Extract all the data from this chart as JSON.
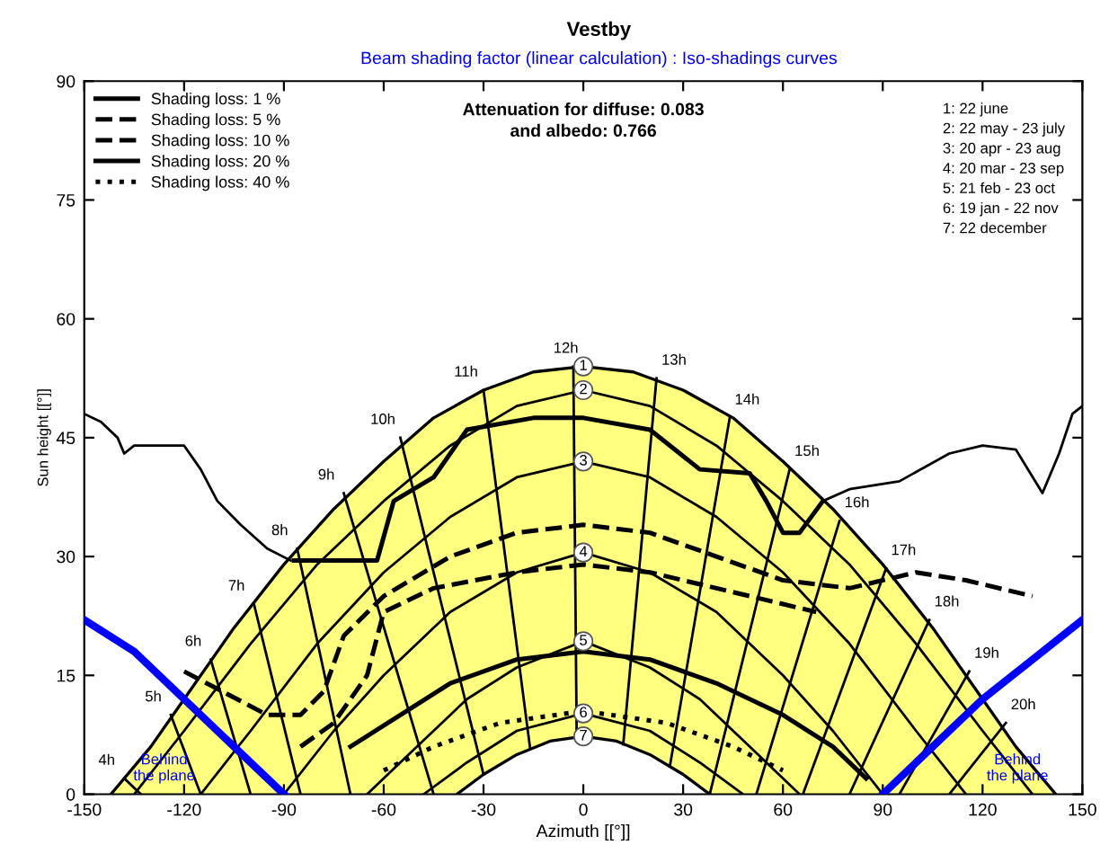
{
  "chart_data": {
    "type": "line",
    "title": "Vestby",
    "subtitle": "Beam shading factor (linear calculation) : Iso-shadings curves",
    "xlabel": "Azimuth [[°]]",
    "ylabel": "Sun height [[°]]",
    "xlim": [
      -150,
      150
    ],
    "xticks": [
      -150,
      -120,
      -90,
      -60,
      -30,
      0,
      30,
      60,
      90,
      120,
      150
    ],
    "ylim": [
      0,
      90
    ],
    "yticks": [
      0,
      15,
      30,
      45,
      60,
      75,
      90
    ],
    "grid": false,
    "legend": "top left",
    "series": [
      {
        "type": "area",
        "color": "#ffff80",
        "x": [
          -142,
          -130,
          -120,
          -105,
          -90,
          -75,
          -60,
          -45,
          -30,
          -15,
          0,
          15,
          30,
          45,
          60,
          75,
          90,
          105,
          120,
          130,
          142
        ],
        "values": [
          0,
          6,
          12,
          21,
          29,
          36,
          42,
          47.5,
          51,
          53.3,
          54,
          53.3,
          51,
          47.5,
          42,
          36,
          29,
          21,
          12,
          6,
          0
        ]
      },
      {
        "color": "#000000",
        "x": [
          -135,
          -120,
          -100,
          -80,
          -60,
          -40,
          -20,
          0,
          20,
          40,
          60,
          80,
          100,
          120,
          135
        ],
        "values": [
          0,
          8,
          19,
          29,
          37,
          44,
          49,
          51,
          49,
          44,
          37,
          29,
          19,
          8,
          0
        ]
      },
      {
        "color": "#000000",
        "x": [
          -115,
          -100,
          -80,
          -60,
          -40,
          -20,
          0,
          20,
          40,
          60,
          80,
          100,
          115
        ],
        "values": [
          0,
          8,
          19,
          28,
          35,
          40,
          42,
          40,
          35,
          28,
          19,
          8,
          0
        ]
      },
      {
        "color": "#000000",
        "x": [
          -90,
          -75,
          -60,
          -40,
          -20,
          0,
          20,
          40,
          60,
          75,
          90
        ],
        "values": [
          0,
          8,
          15,
          23,
          28,
          30.5,
          28,
          23,
          15,
          8,
          0
        ]
      },
      {
        "color": "#000000",
        "x": [
          -65,
          -50,
          -35,
          -20,
          0,
          20,
          35,
          50,
          65
        ],
        "values": [
          0,
          6,
          12,
          16,
          19.3,
          16,
          12,
          6,
          0
        ]
      },
      {
        "color": "#000000",
        "x": [
          -48,
          -35,
          -20,
          0,
          20,
          35,
          48
        ],
        "values": [
          0,
          4,
          8,
          10.2,
          8,
          4,
          0
        ]
      },
      {
        "type": "area",
        "color": "#ffffff",
        "x": [
          -38,
          -30,
          -20,
          -10,
          0,
          10,
          20,
          30,
          38
        ],
        "values": [
          0,
          2.5,
          5,
          6.7,
          7.3,
          6.7,
          5,
          2.5,
          0
        ]
      },
      {
        "color": "#000000",
        "x": [
          -138,
          -133
        ],
        "values": [
          2,
          0
        ]
      },
      {
        "color": "#000000",
        "x": [
          -124,
          -115
        ],
        "values": [
          10,
          0
        ]
      },
      {
        "color": "#000000",
        "x": [
          -112,
          -100
        ],
        "values": [
          17,
          0
        ]
      },
      {
        "color": "#000000",
        "x": [
          -99,
          -85
        ],
        "values": [
          24,
          0
        ]
      },
      {
        "color": "#000000",
        "x": [
          -86,
          -70
        ],
        "values": [
          31,
          0
        ]
      },
      {
        "color": "#000000",
        "x": [
          -72,
          -45
        ],
        "values": [
          38,
          0
        ]
      },
      {
        "color": "#000000",
        "x": [
          -55,
          -30
        ],
        "values": [
          45,
          2.5
        ]
      },
      {
        "color": "#000000",
        "x": [
          -30,
          -16
        ],
        "values": [
          51,
          5.8
        ]
      },
      {
        "color": "#000000",
        "x": [
          -3,
          -2
        ],
        "values": [
          54,
          7.3
        ]
      },
      {
        "color": "#000000",
        "x": [
          22,
          12
        ],
        "values": [
          52.5,
          6.3
        ]
      },
      {
        "color": "#000000",
        "x": [
          44,
          26
        ],
        "values": [
          47.5,
          3.5
        ]
      },
      {
        "color": "#000000",
        "x": [
          62,
          38
        ],
        "values": [
          41,
          0
        ]
      },
      {
        "color": "#000000",
        "x": [
          77,
          52
        ],
        "values": [
          34.5,
          0
        ]
      },
      {
        "color": "#000000",
        "x": [
          91,
          66
        ],
        "values": [
          28.5,
          0
        ]
      },
      {
        "color": "#000000",
        "x": [
          104,
          80
        ],
        "values": [
          22,
          0
        ]
      },
      {
        "color": "#000000",
        "x": [
          116,
          95
        ],
        "values": [
          15.5,
          0
        ]
      },
      {
        "color": "#000000",
        "x": [
          127,
          110
        ],
        "values": [
          9,
          0
        ]
      },
      {
        "color": "#000000",
        "x": [
          -150,
          -145,
          -140,
          -138,
          -135,
          -120,
          -115,
          -110,
          -103,
          -95,
          -88
        ],
        "values": [
          48,
          47,
          45,
          43,
          44,
          44,
          41,
          37,
          34,
          31,
          29.5
        ]
      },
      {
        "color": "#000000",
        "x": [
          72,
          80,
          95,
          110,
          120,
          130,
          138,
          143,
          147,
          150
        ],
        "values": [
          37,
          38.5,
          39.5,
          43,
          44,
          43.5,
          38,
          43,
          48,
          49
        ]
      },
      {
        "color": "#0000ff",
        "x": [
          -150,
          -135,
          -120,
          -105,
          -90
        ],
        "values": [
          22,
          18,
          12,
          6,
          0
        ]
      },
      {
        "color": "#0000ff",
        "x": [
          90,
          105,
          120,
          135,
          150
        ],
        "values": [
          0,
          6,
          12,
          17,
          22
        ]
      },
      {
        "name": "Shading loss: 1 %",
        "color": "#000000",
        "line_style": "solid",
        "x": [
          -87,
          -62,
          -57,
          -45,
          -35,
          -15,
          0,
          20,
          35,
          50,
          55,
          60,
          65,
          72
        ],
        "values": [
          29.5,
          29.5,
          37,
          40,
          46,
          47.5,
          47.5,
          46,
          41,
          40.5,
          37,
          33,
          33,
          37
        ]
      },
      {
        "name": "Shading loss: 5 %",
        "color": "#000000",
        "line_style": "dashed",
        "x": [
          -120,
          -95,
          -85,
          -78,
          -72,
          -60,
          -40,
          -20,
          0,
          20,
          40,
          60,
          80,
          100,
          115,
          135
        ],
        "values": [
          15.5,
          10,
          10,
          13,
          20,
          25,
          30,
          33,
          34,
          33,
          30,
          27,
          26,
          28,
          27,
          25
        ]
      },
      {
        "name": "Shading loss: 10 %",
        "color": "#000000",
        "line_style": "dashed",
        "x": [
          -85,
          -75,
          -65,
          -60,
          -45,
          -20,
          0,
          20,
          50,
          70
        ],
        "values": [
          6,
          9,
          15,
          23,
          26,
          28,
          29,
          28,
          25,
          23
        ]
      },
      {
        "name": "Shading loss: 20 %",
        "color": "#000000",
        "line_style": "solid",
        "x": [
          -70,
          -55,
          -40,
          -20,
          0,
          20,
          40,
          60,
          75,
          85
        ],
        "values": [
          6,
          10,
          14,
          17,
          18,
          17,
          14,
          10,
          6,
          2
        ]
      },
      {
        "name": "Shading loss: 40 %",
        "color": "#000000",
        "line_style": "dotted",
        "x": [
          -60,
          -45,
          -25,
          0,
          25,
          45,
          60
        ],
        "values": [
          3,
          6,
          9,
          10.5,
          9,
          6,
          3
        ]
      }
    ],
    "annotations": [
      "Attenuation for diffuse: 0.083\nand albedo: 0.766",
      "1: 22 june\n2: 22 may - 23 july\n3: 20 apr - 23 aug\n4: 20 mar - 23 sep\n5: 21 feb - 23 oct\n6: 19 jan - 22 nov\n7: 22 december",
      "Behind\nthe plane",
      "Behind\nthe plane",
      {
        "text": "4h",
        "x": -138,
        "y": 2
      },
      {
        "text": "5h",
        "x": -124,
        "y": 10
      },
      {
        "text": "6h",
        "x": -112,
        "y": 17
      },
      {
        "text": "7h",
        "x": -99,
        "y": 24
      },
      {
        "text": "8h",
        "x": -86,
        "y": 31
      },
      {
        "text": "9h",
        "x": -72,
        "y": 38
      },
      {
        "text": "10h",
        "x": -55,
        "y": 45
      },
      {
        "text": "11h",
        "x": -30,
        "y": 51
      },
      {
        "text": "12h",
        "x": -3,
        "y": 54
      },
      {
        "text": "13h",
        "x": 22,
        "y": 52.5
      },
      {
        "text": "14h",
        "x": 44,
        "y": 47.5
      },
      {
        "text": "15h",
        "x": 62,
        "y": 41
      },
      {
        "text": "16h",
        "x": 77,
        "y": 34.5
      },
      {
        "text": "17h",
        "x": 91,
        "y": 28.5
      },
      {
        "text": "18h",
        "x": 104,
        "y": 22
      },
      {
        "text": "19h",
        "x": 116,
        "y": 15.5
      },
      {
        "text": "20h",
        "x": 127,
        "y": 9
      },
      {
        "text": "1",
        "x": 0,
        "y": 54
      },
      {
        "text": "2",
        "x": 0,
        "y": 51
      },
      {
        "text": "3",
        "x": 0,
        "y": 42
      },
      {
        "text": "4",
        "x": 0,
        "y": 30.5
      },
      {
        "text": "5",
        "x": 0,
        "y": 19.3
      },
      {
        "text": "6",
        "x": 0,
        "y": 10.2
      },
      {
        "text": "7",
        "x": 0,
        "y": 7.3
      }
    ]
  }
}
